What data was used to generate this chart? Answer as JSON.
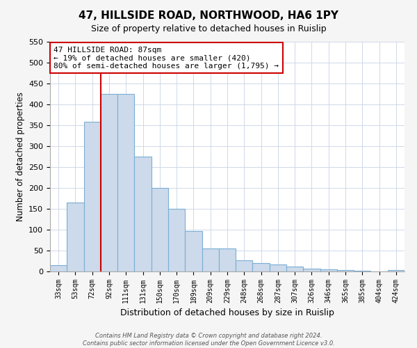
{
  "title": "47, HILLSIDE ROAD, NORTHWOOD, HA6 1PY",
  "subtitle": "Size of property relative to detached houses in Ruislip",
  "xlabel": "Distribution of detached houses by size in Ruislip",
  "ylabel": "Number of detached properties",
  "bar_labels": [
    "33sqm",
    "53sqm",
    "72sqm",
    "92sqm",
    "111sqm",
    "131sqm",
    "150sqm",
    "170sqm",
    "189sqm",
    "209sqm",
    "229sqm",
    "248sqm",
    "268sqm",
    "287sqm",
    "307sqm",
    "326sqm",
    "346sqm",
    "365sqm",
    "385sqm",
    "404sqm",
    "424sqm"
  ],
  "bar_values": [
    15,
    165,
    358,
    425,
    425,
    275,
    200,
    150,
    97,
    55,
    55,
    27,
    20,
    17,
    12,
    7,
    5,
    3,
    2,
    0,
    3
  ],
  "bar_color": "#ccdaeb",
  "bar_edge_color": "#7aaed4",
  "vline_color": "#cc0000",
  "vline_index": 3,
  "annotation_text_line1": "47 HILLSIDE ROAD: 87sqm",
  "annotation_text_line2": "← 19% of detached houses are smaller (420)",
  "annotation_text_line3": "80% of semi-detached houses are larger (1,795) →",
  "annotation_box_facecolor": "white",
  "annotation_box_edgecolor": "#cc0000",
  "ylim": [
    0,
    550
  ],
  "yticks": [
    0,
    50,
    100,
    150,
    200,
    250,
    300,
    350,
    400,
    450,
    500,
    550
  ],
  "footer_line1": "Contains HM Land Registry data © Crown copyright and database right 2024.",
  "footer_line2": "Contains public sector information licensed under the Open Government Licence v3.0.",
  "fig_facecolor": "#f5f5f5",
  "plot_facecolor": "#ffffff",
  "grid_color": "#d0d8e8"
}
